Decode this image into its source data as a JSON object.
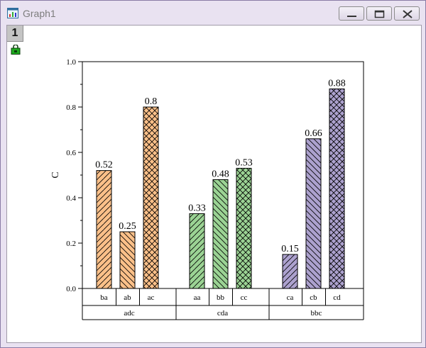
{
  "window": {
    "title": "Graph1",
    "layer_label": "1"
  },
  "icons": {
    "app": "graph-window-icon",
    "lock": "layer-lock-icon",
    "minimize": "minimize-icon",
    "maximize": "maximize-icon",
    "close": "close-icon"
  },
  "colors": {
    "orange": "#fbc089",
    "green": "#9bd394",
    "purple": "#aca1ce"
  },
  "chart_data": {
    "type": "bar",
    "ylabel": "C",
    "ylim": [
      0,
      1.0
    ],
    "yticks": [
      "0.0",
      "0.2",
      "0.4",
      "0.6",
      "0.8",
      "1.0"
    ],
    "groups": [
      {
        "name": "adc",
        "color": "orange",
        "bars": [
          {
            "label": "ba",
            "value": 0.52,
            "text": "0.52",
            "pattern": "diag"
          },
          {
            "label": "ab",
            "value": 0.25,
            "text": "0.25",
            "pattern": "anti"
          },
          {
            "label": "ac",
            "value": 0.8,
            "text": "0.8",
            "pattern": "cross"
          }
        ]
      },
      {
        "name": "cda",
        "color": "green",
        "bars": [
          {
            "label": "aa",
            "value": 0.33,
            "text": "0.33",
            "pattern": "diag"
          },
          {
            "label": "bb",
            "value": 0.48,
            "text": "0.48",
            "pattern": "anti"
          },
          {
            "label": "cc",
            "value": 0.53,
            "text": "0.53",
            "pattern": "cross"
          }
        ]
      },
      {
        "name": "bbc",
        "color": "purple",
        "bars": [
          {
            "label": "ca",
            "value": 0.15,
            "text": "0.15",
            "pattern": "diag"
          },
          {
            "label": "cb",
            "value": 0.66,
            "text": "0.66",
            "pattern": "anti"
          },
          {
            "label": "cd",
            "value": 0.88,
            "text": "0.88",
            "pattern": "cross"
          }
        ]
      }
    ]
  }
}
